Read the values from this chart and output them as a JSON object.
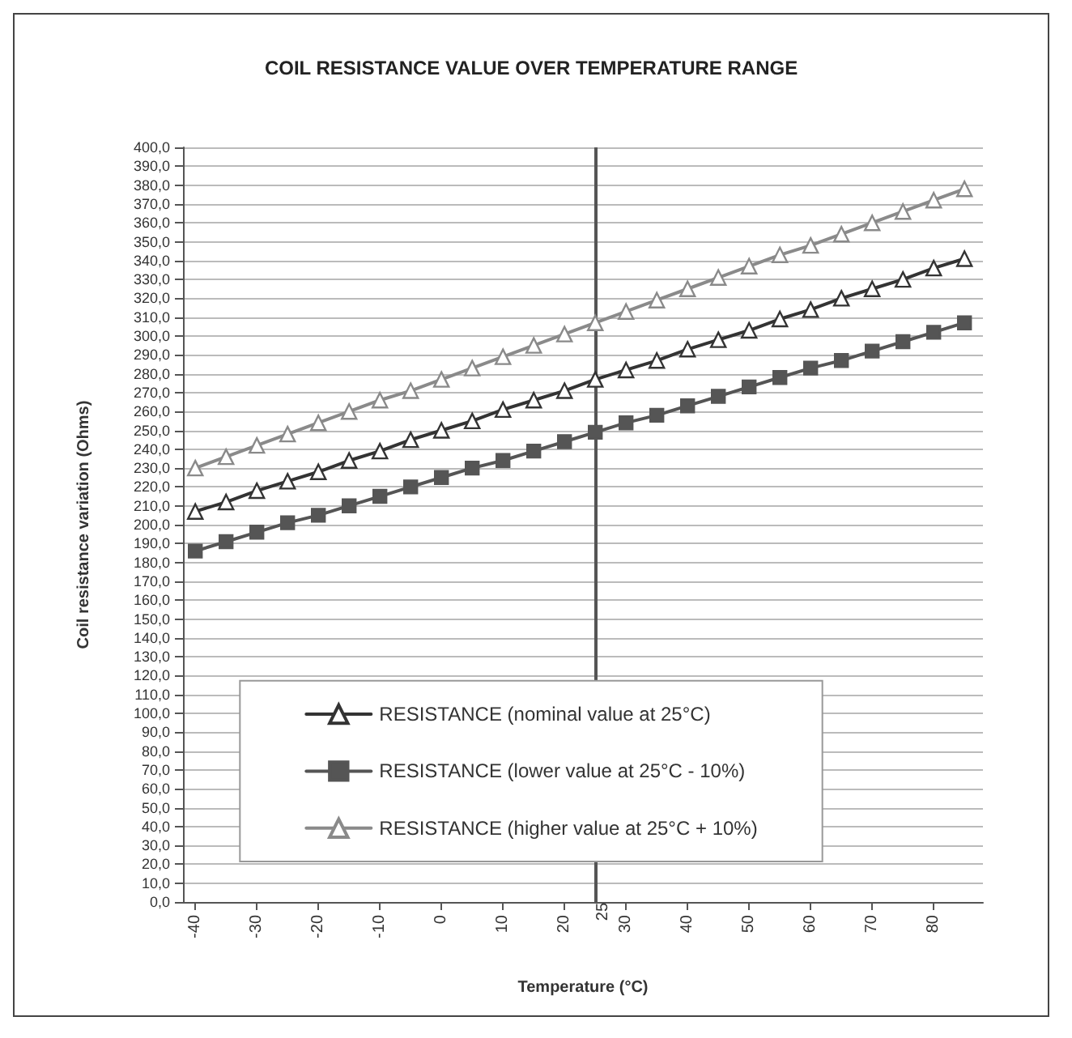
{
  "chart_data": {
    "type": "line",
    "title": "COIL RESISTANCE VALUE OVER TEMPERATURE RANGE",
    "xlabel": "Temperature (°C)",
    "ylabel": "Coil resistance variation (Ohms)",
    "x": [
      -40,
      -35,
      -30,
      -25,
      -20,
      -15,
      -10,
      -5,
      0,
      5,
      10,
      15,
      20,
      25,
      30,
      35,
      40,
      45,
      50,
      55,
      60,
      65,
      70,
      75,
      80,
      85
    ],
    "series": [
      {
        "name": "RESISTANCE (nominal value at 25°C)",
        "color": "#333333",
        "marker": "triangle",
        "values": [
          207,
          212,
          218,
          223,
          228,
          234,
          239,
          245,
          250,
          255,
          261,
          266,
          271,
          277,
          282,
          287,
          293,
          298,
          303,
          309,
          314,
          320,
          325,
          330,
          336,
          341
        ]
      },
      {
        "name": "RESISTANCE (lower value at 25°C - 10%)",
        "color": "#555555",
        "marker": "square",
        "values": [
          186,
          191,
          196,
          201,
          205,
          210,
          215,
          220,
          225,
          230,
          234,
          239,
          244,
          249,
          254,
          258,
          263,
          268,
          273,
          278,
          283,
          287,
          292,
          297,
          302,
          307
        ]
      },
      {
        "name": "RESISTANCE (higher value at 25°C + 10%)",
        "color": "#8a8a8a",
        "marker": "triangle",
        "values": [
          230,
          236,
          242,
          248,
          254,
          260,
          266,
          271,
          277,
          283,
          289,
          295,
          301,
          307,
          313,
          319,
          325,
          331,
          337,
          343,
          348,
          354,
          360,
          366,
          372,
          378
        ]
      }
    ],
    "xlim": [
      -42,
      88
    ],
    "xticks": [
      -40,
      -30,
      -20,
      -10,
      0,
      10,
      20,
      30,
      40,
      50,
      60,
      70,
      80
    ],
    "ylim": [
      0,
      400
    ],
    "yticks": [
      {
        "value": 0,
        "label": "0,0"
      },
      {
        "value": 10,
        "label": "10,0"
      },
      {
        "value": 20,
        "label": "20,0"
      },
      {
        "value": 30,
        "label": "30,0"
      },
      {
        "value": 40,
        "label": "40,0"
      },
      {
        "value": 50,
        "label": "50,0"
      },
      {
        "value": 60,
        "label": "60,0"
      },
      {
        "value": 70,
        "label": "70,0"
      },
      {
        "value": 80,
        "label": "80,0"
      },
      {
        "value": 90,
        "label": "90,0"
      },
      {
        "value": 100,
        "label": "100,0"
      },
      {
        "value": 110,
        "label": "110,0"
      },
      {
        "value": 120,
        "label": "120,0"
      },
      {
        "value": 130,
        "label": "130,0"
      },
      {
        "value": 140,
        "label": "140,0"
      },
      {
        "value": 150,
        "label": "150,0"
      },
      {
        "value": 160,
        "label": "160,0"
      },
      {
        "value": 170,
        "label": "170,0"
      },
      {
        "value": 180,
        "label": "180,0"
      },
      {
        "value": 190,
        "label": "190,0"
      },
      {
        "value": 200,
        "label": "200,0"
      },
      {
        "value": 210,
        "label": "210,0"
      },
      {
        "value": 220,
        "label": "220,0"
      },
      {
        "value": 230,
        "label": "230,0"
      },
      {
        "value": 240,
        "label": "240,0"
      },
      {
        "value": 250,
        "label": "250,0"
      },
      {
        "value": 260,
        "label": "260,0"
      },
      {
        "value": 270,
        "label": "270,0"
      },
      {
        "value": 280,
        "label": "280,0"
      },
      {
        "value": 290,
        "label": "290,0"
      },
      {
        "value": 300,
        "label": "300,0"
      },
      {
        "value": 310,
        "label": "310,0"
      },
      {
        "value": 320,
        "label": "320,0"
      },
      {
        "value": 330,
        "label": "330,0"
      },
      {
        "value": 340,
        "label": "340,0"
      },
      {
        "value": 350,
        "label": "350,0"
      },
      {
        "value": 360,
        "label": "360,0"
      },
      {
        "value": 370,
        "label": "370,0"
      },
      {
        "value": 380,
        "label": "380,0"
      },
      {
        "value": 390,
        "label": "390,0"
      },
      {
        "value": 400,
        "label": "400,0"
      }
    ],
    "ref_lines": [
      {
        "axis": "x",
        "value": 25,
        "label": "25",
        "color": "#555555"
      }
    ],
    "grid": "y",
    "legend": "bottom",
    "line_style": "solid"
  }
}
